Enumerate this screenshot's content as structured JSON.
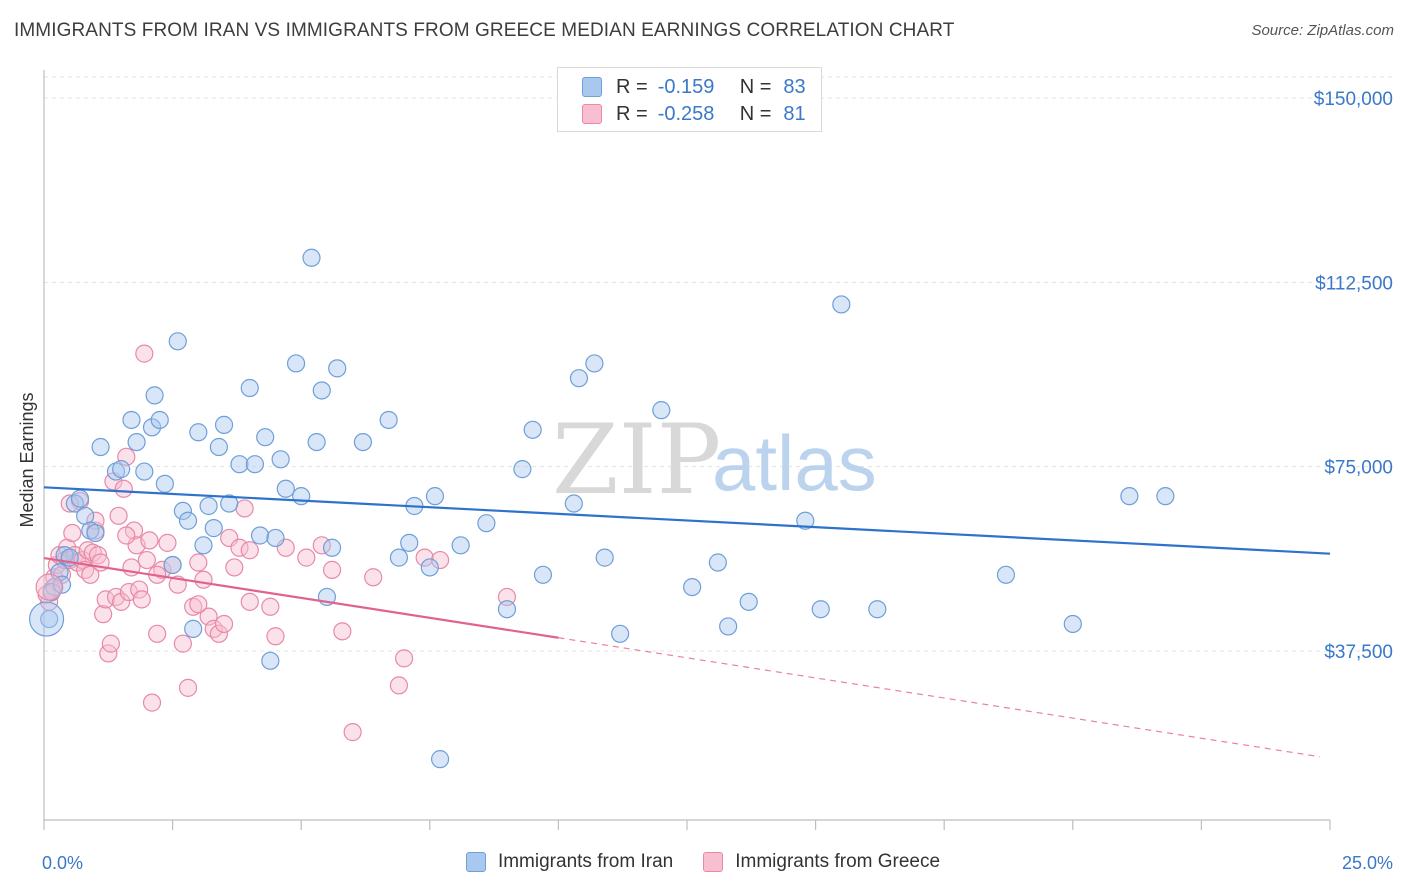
{
  "header": {
    "title": "IMMIGRANTS FROM IRAN VS IMMIGRANTS FROM GREECE MEDIAN EARNINGS CORRELATION CHART",
    "source": "Source: ZipAtlas.com"
  },
  "watermark": {
    "zip": "ZIP",
    "atlas": "atlas"
  },
  "legend": {
    "rows": [
      {
        "r_label": "R =",
        "r_value": "-0.159",
        "n_label": "N =",
        "n_value": "83",
        "color": "#a9c8f0",
        "border": "#6f9fd8"
      },
      {
        "r_label": "R =",
        "r_value": "-0.258",
        "n_label": "N =",
        "n_value": "81",
        "color": "#f7bfd0",
        "border": "#e889a7"
      }
    ]
  },
  "bottom_legend": {
    "items": [
      {
        "label": "Immigrants from Iran",
        "color": "#a9c8f0",
        "border": "#6f9fd8"
      },
      {
        "label": "Immigrants from Greece",
        "color": "#f7bfd0",
        "border": "#e889a7"
      }
    ]
  },
  "chart_data": {
    "type": "scatter",
    "title": "IMMIGRANTS FROM IRAN VS IMMIGRANTS FROM GREECE MEDIAN EARNINGS CORRELATION CHART",
    "ylabel": "Median Earnings",
    "xlabel": "",
    "xlim": [
      0,
      25
    ],
    "ylim": [
      0,
      155000
    ],
    "x_tick_labels": [
      "0.0%",
      "25.0%"
    ],
    "y_ticks": [
      37500,
      75000,
      112500,
      150000
    ],
    "y_tick_labels": [
      "$37,500",
      "$75,000",
      "$112,500",
      "$150,000"
    ],
    "grid": true,
    "legend_position": "top-center",
    "series": [
      {
        "name": "Immigrants from Iran",
        "color": "#6f9fd8",
        "fill": "#a9c8f0",
        "trend": {
          "x": [
            0,
            25
          ],
          "y": [
            70800,
            57300
          ],
          "color": "#2f72cc"
        },
        "points": [
          [
            0.1,
            44000
          ],
          [
            0.2,
            50500
          ],
          [
            0.3,
            53500
          ],
          [
            0.4,
            57000
          ],
          [
            0.5,
            56500
          ],
          [
            0.6,
            67500
          ],
          [
            0.7,
            68500
          ],
          [
            0.8,
            65000
          ],
          [
            0.9,
            62000
          ],
          [
            1.0,
            61500
          ],
          [
            1.1,
            79000
          ],
          [
            1.4,
            74000
          ],
          [
            1.5,
            74500
          ],
          [
            1.7,
            84500
          ],
          [
            1.8,
            80000
          ],
          [
            1.95,
            74000
          ],
          [
            2.1,
            83000
          ],
          [
            2.15,
            89500
          ],
          [
            2.25,
            84500
          ],
          [
            2.35,
            71500
          ],
          [
            2.5,
            55000
          ],
          [
            2.6,
            100500
          ],
          [
            2.7,
            66000
          ],
          [
            2.8,
            64000
          ],
          [
            2.9,
            42000
          ],
          [
            3.0,
            82000
          ],
          [
            3.1,
            59000
          ],
          [
            3.2,
            67000
          ],
          [
            3.3,
            62500
          ],
          [
            3.4,
            79000
          ],
          [
            3.5,
            83500
          ],
          [
            3.6,
            67500
          ],
          [
            3.8,
            75500
          ],
          [
            4.0,
            91000
          ],
          [
            4.1,
            75500
          ],
          [
            4.2,
            61000
          ],
          [
            4.3,
            81000
          ],
          [
            4.4,
            35500
          ],
          [
            4.5,
            60500
          ],
          [
            4.6,
            76500
          ],
          [
            4.7,
            70500
          ],
          [
            4.9,
            96000
          ],
          [
            5.0,
            69000
          ],
          [
            5.2,
            117500
          ],
          [
            5.3,
            80000
          ],
          [
            5.4,
            90500
          ],
          [
            5.5,
            48500
          ],
          [
            5.6,
            58500
          ],
          [
            5.7,
            95000
          ],
          [
            6.2,
            80000
          ],
          [
            6.7,
            84500
          ],
          [
            6.9,
            56500
          ],
          [
            7.1,
            59500
          ],
          [
            7.2,
            67000
          ],
          [
            7.5,
            54500
          ],
          [
            7.6,
            69000
          ],
          [
            7.7,
            15500
          ],
          [
            8.1,
            59000
          ],
          [
            8.6,
            63500
          ],
          [
            9.0,
            46000
          ],
          [
            9.3,
            74500
          ],
          [
            9.5,
            82500
          ],
          [
            9.7,
            53000
          ],
          [
            10.3,
            67500
          ],
          [
            10.4,
            93000
          ],
          [
            10.7,
            96000
          ],
          [
            10.9,
            56500
          ],
          [
            11.2,
            41000
          ],
          [
            12.0,
            86500
          ],
          [
            12.6,
            50500
          ],
          [
            13.1,
            55500
          ],
          [
            13.3,
            42500
          ],
          [
            13.7,
            47500
          ],
          [
            14.8,
            64000
          ],
          [
            15.1,
            46000
          ],
          [
            15.5,
            108000
          ],
          [
            16.2,
            46000
          ],
          [
            18.7,
            53000
          ],
          [
            20.0,
            43000
          ],
          [
            21.1,
            69000
          ],
          [
            21.8,
            69000
          ],
          [
            0.15,
            49500
          ],
          [
            0.35,
            51000
          ]
        ]
      },
      {
        "name": "Immigrants from Greece",
        "color": "#e889a7",
        "fill": "#f7bfd0",
        "trend": {
          "x": [
            0,
            10
          ],
          "y": [
            56400,
            40200
          ],
          "color": "#e2628e"
        },
        "trend_dashed": {
          "x": [
            10,
            24.8
          ],
          "y": [
            40200,
            16000
          ]
        },
        "points": [
          [
            0.1,
            47500
          ],
          [
            0.15,
            50000
          ],
          [
            0.2,
            52500
          ],
          [
            0.25,
            55000
          ],
          [
            0.3,
            57000
          ],
          [
            0.35,
            53000
          ],
          [
            0.4,
            56000
          ],
          [
            0.45,
            58500
          ],
          [
            0.5,
            56000
          ],
          [
            0.55,
            61500
          ],
          [
            0.6,
            57000
          ],
          [
            0.65,
            55500
          ],
          [
            0.7,
            68000
          ],
          [
            0.75,
            56000
          ],
          [
            0.8,
            54000
          ],
          [
            0.85,
            58000
          ],
          [
            0.9,
            53000
          ],
          [
            0.95,
            57500
          ],
          [
            1.0,
            62000
          ],
          [
            1.05,
            57000
          ],
          [
            1.1,
            55500
          ],
          [
            1.15,
            45000
          ],
          [
            1.2,
            48000
          ],
          [
            1.25,
            37000
          ],
          [
            1.3,
            39000
          ],
          [
            1.35,
            72000
          ],
          [
            1.4,
            48500
          ],
          [
            1.45,
            65000
          ],
          [
            1.5,
            47500
          ],
          [
            1.55,
            70500
          ],
          [
            1.6,
            77000
          ],
          [
            1.65,
            49500
          ],
          [
            1.7,
            54500
          ],
          [
            1.75,
            62000
          ],
          [
            1.8,
            59000
          ],
          [
            1.85,
            50000
          ],
          [
            1.9,
            48000
          ],
          [
            1.95,
            98000
          ],
          [
            2.0,
            56000
          ],
          [
            2.05,
            60000
          ],
          [
            2.1,
            27000
          ],
          [
            2.2,
            41000
          ],
          [
            2.3,
            54000
          ],
          [
            2.4,
            59500
          ],
          [
            2.5,
            55000
          ],
          [
            2.6,
            51000
          ],
          [
            2.7,
            39000
          ],
          [
            2.8,
            30000
          ],
          [
            2.9,
            46500
          ],
          [
            3.0,
            55500
          ],
          [
            3.1,
            52000
          ],
          [
            3.2,
            44500
          ],
          [
            3.3,
            42000
          ],
          [
            3.4,
            41000
          ],
          [
            3.5,
            43000
          ],
          [
            3.6,
            60500
          ],
          [
            3.7,
            54500
          ],
          [
            3.8,
            58500
          ],
          [
            3.9,
            66500
          ],
          [
            4.0,
            58000
          ],
          [
            4.4,
            46500
          ],
          [
            4.5,
            40500
          ],
          [
            4.7,
            58500
          ],
          [
            5.1,
            56500
          ],
          [
            5.4,
            59000
          ],
          [
            5.6,
            54000
          ],
          [
            5.8,
            41500
          ],
          [
            6.0,
            21000
          ],
          [
            6.4,
            52500
          ],
          [
            6.9,
            30500
          ],
          [
            7.0,
            36000
          ],
          [
            7.4,
            56500
          ],
          [
            7.7,
            56000
          ],
          [
            9.0,
            48500
          ],
          [
            0.05,
            49000
          ],
          [
            0.5,
            67500
          ],
          [
            1.0,
            64000
          ],
          [
            1.6,
            61000
          ],
          [
            2.2,
            53000
          ],
          [
            3.0,
            47000
          ],
          [
            4.0,
            47500
          ]
        ]
      }
    ]
  }
}
